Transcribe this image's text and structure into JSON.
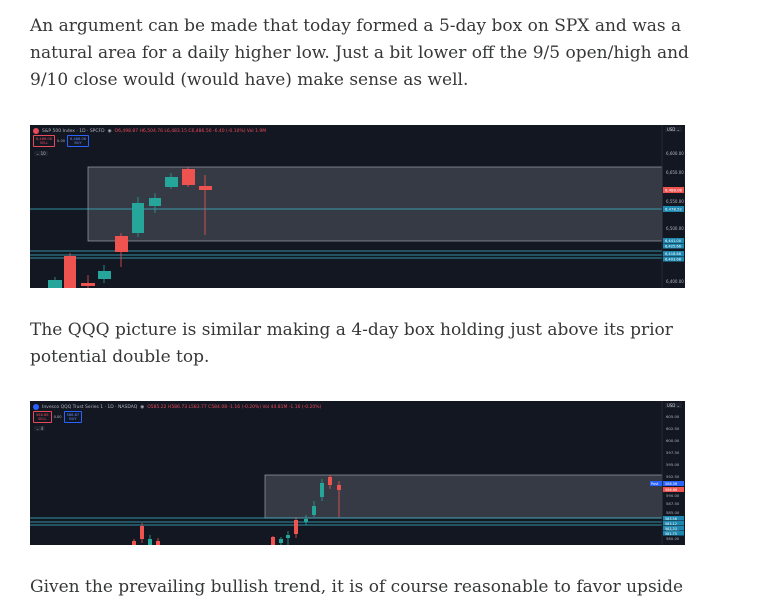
{
  "article": {
    "p1": "An argument can be made that today formed a 5-day box on SPX and was a natural area for a daily higher low. Just a bit lower off the 9/5 open/high and 9/10 close would (would have) make sense as well.",
    "p2": "The QQQ picture is similar making a 4-day box holding just above its prior potential double top.",
    "p3": "Given the prevailing bullish trend, it is of course reasonable to favor upside"
  },
  "spx": {
    "title": "S&P 500 Index · 1D · SPCFD",
    "ohlc": "O6,498.87 H6,504.76 L6,483.15 C6,486.56 -6.40 (-0.10%) Vol 1.9M",
    "sell_price": "6,486.06",
    "sell_label": "SELL",
    "spread": "0.00",
    "buy_price": "6,486.06",
    "buy_label": "BUY",
    "indicator": "10",
    "currency": "USD",
    "price_labels": [
      "6,600.00",
      "6,650.00",
      "6,500.00",
      "6,550.00",
      "6,400.00"
    ],
    "tags": [
      "6,488.08",
      "6,478.52",
      "6,441.00",
      "6,425.66",
      "6,418.68",
      "6,403.68"
    ]
  },
  "qqq": {
    "title": "Invesco QQQ Trust Series 1 · 1D · NASDAQ",
    "ohlc": "O585.22 H586.73 L583.77 C584.08 -1.16 (-0.20%) Vol 44.81M -1.16 (-0.20%)",
    "sell_price": "586.86",
    "sell_label": "SELL",
    "spread": "0.00",
    "buy_price": "586.87",
    "buy_label": "BUY",
    "indicator": "4",
    "currency": "USD",
    "price_labels": [
      "605.00",
      "602.50",
      "600.00",
      "597.50",
      "595.00",
      "592.50",
      "590.00",
      "587.50",
      "585.00",
      "582.50",
      "580.00"
    ],
    "tags": [
      "Post",
      "586.56",
      "586.86",
      "583.56",
      "583.12",
      "582.33",
      "581.75"
    ]
  },
  "colors": {
    "background": "#131722",
    "up": "#26a69a",
    "down": "#ef5350",
    "level": "#3bb8c8",
    "box": "#9598a1"
  }
}
